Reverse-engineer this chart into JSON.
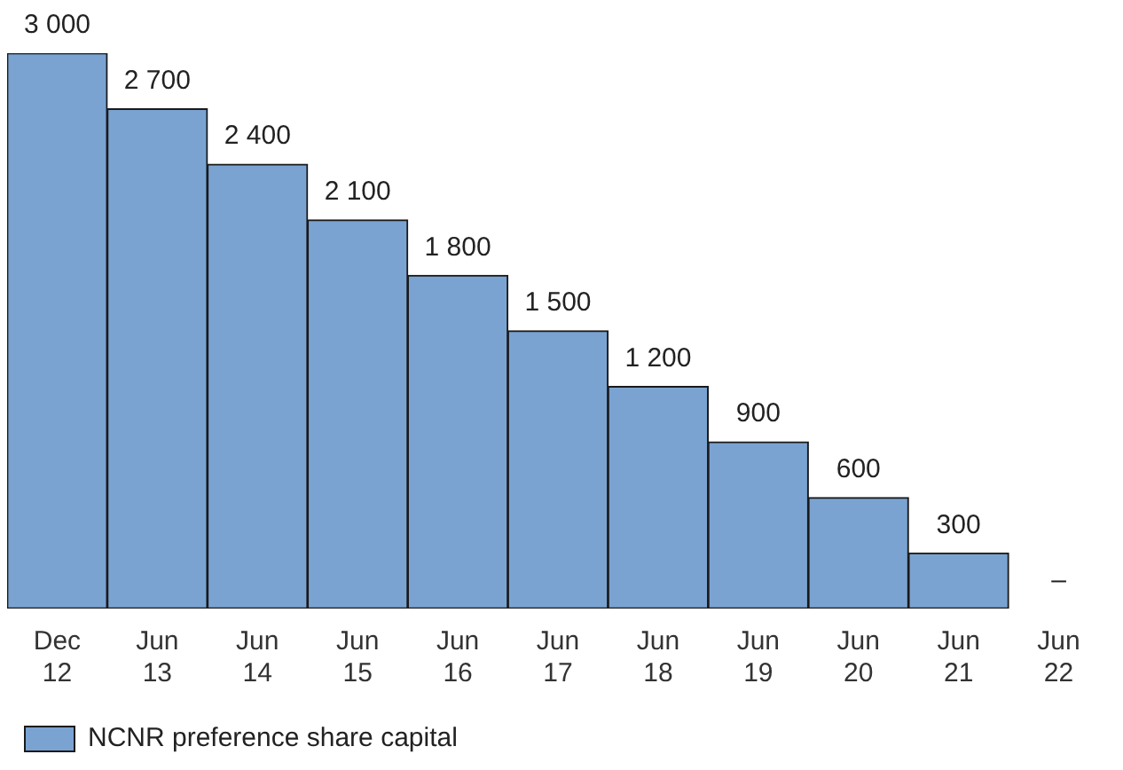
{
  "chart_data": {
    "type": "bar",
    "categories": [
      "Dec 12",
      "Jun 13",
      "Jun 14",
      "Jun 15",
      "Jun 16",
      "Jun 17",
      "Jun 18",
      "Jun 19",
      "Jun 20",
      "Jun 21",
      "Jun 22"
    ],
    "series": [
      {
        "name": "NCNR preference share capital",
        "color": "#7aa3d2",
        "values": [
          3000,
          2700,
          2400,
          2100,
          1800,
          1500,
          1200,
          900,
          600,
          300,
          null
        ]
      }
    ],
    "data_labels": true,
    "value_labels": [
      null,
      null,
      null,
      null,
      null,
      null,
      null,
      null,
      null,
      null,
      "–"
    ],
    "legend": "bottom left",
    "grid": false
  }
}
